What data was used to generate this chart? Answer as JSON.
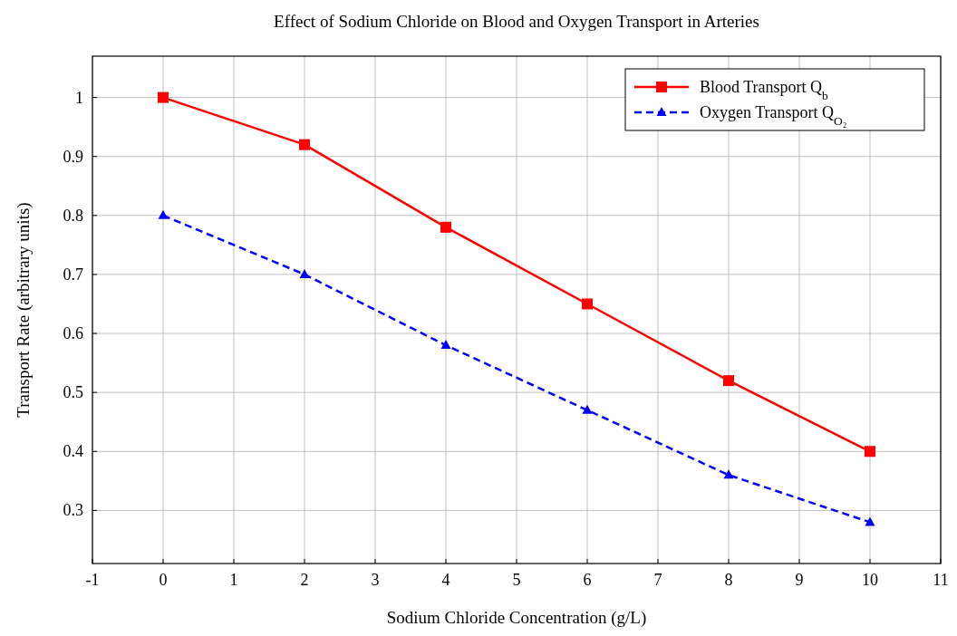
{
  "chart_data": {
    "type": "line",
    "title": "Effect of Sodium Chloride on Blood and Oxygen Transport in Arteries",
    "xlabel": "Sodium Chloride Concentration (g/L)",
    "ylabel": "Transport Rate (arbitrary units)",
    "x": [
      0,
      2,
      4,
      6,
      8,
      10
    ],
    "series": [
      {
        "name": "Blood Transport Q$_{b}$",
        "color": "#ff0000",
        "values": [
          1.0,
          0.92,
          0.78,
          0.65,
          0.52,
          0.4
        ],
        "marker": "square",
        "line_style": "solid"
      },
      {
        "name": "Oxygen Transport Q$_{O₂}$",
        "color": "#0000ff",
        "values": [
          0.8,
          0.7,
          0.58,
          0.47,
          0.36,
          0.28
        ],
        "marker": "triangle",
        "line_style": "dashed"
      }
    ],
    "xlim": [
      -1,
      11
    ],
    "xticks": [
      -1,
      0,
      1,
      2,
      3,
      4,
      5,
      6,
      7,
      8,
      9,
      10,
      11
    ],
    "ylim": [
      0.21,
      1.07
    ],
    "yticks": [
      0.3,
      0.4,
      0.5,
      0.6,
      0.7,
      0.8,
      0.9,
      1
    ],
    "grid": true,
    "legend": "top right"
  }
}
